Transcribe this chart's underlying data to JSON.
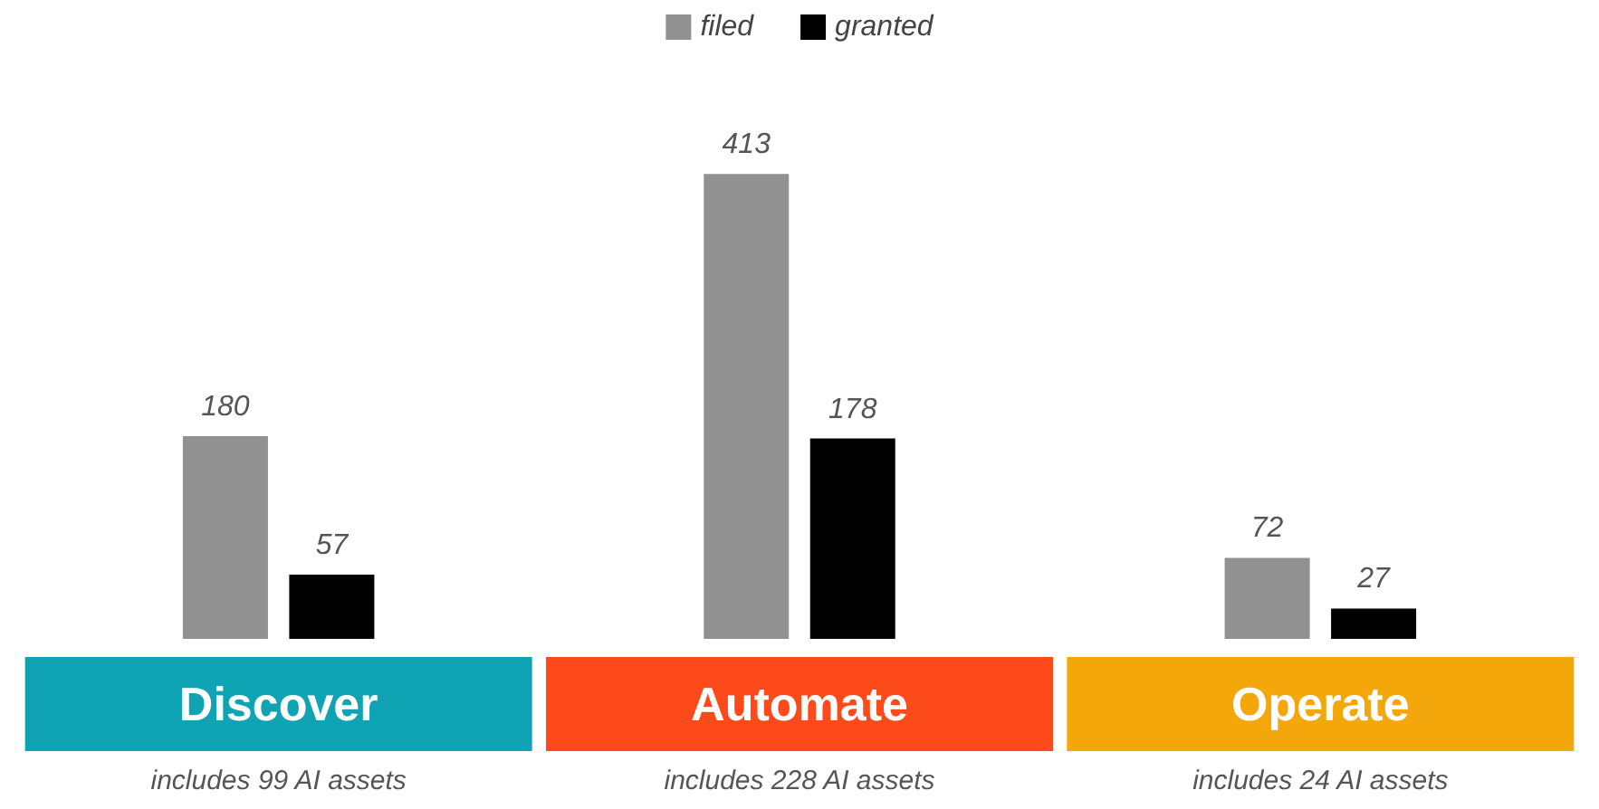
{
  "chart_data": {
    "type": "bar",
    "categories": [
      "Discover",
      "Automate",
      "Operate"
    ],
    "series": [
      {
        "name": "filed",
        "color": "#919191",
        "values": [
          180,
          413,
          72
        ]
      },
      {
        "name": "granted",
        "color": "#000000",
        "values": [
          57,
          178,
          27
        ]
      }
    ],
    "data_labels": true,
    "legend": "top",
    "annotations": [
      "includes 99 AI assets",
      "includes 228 AI assets",
      "includes 24 AI assets"
    ]
  }
}
